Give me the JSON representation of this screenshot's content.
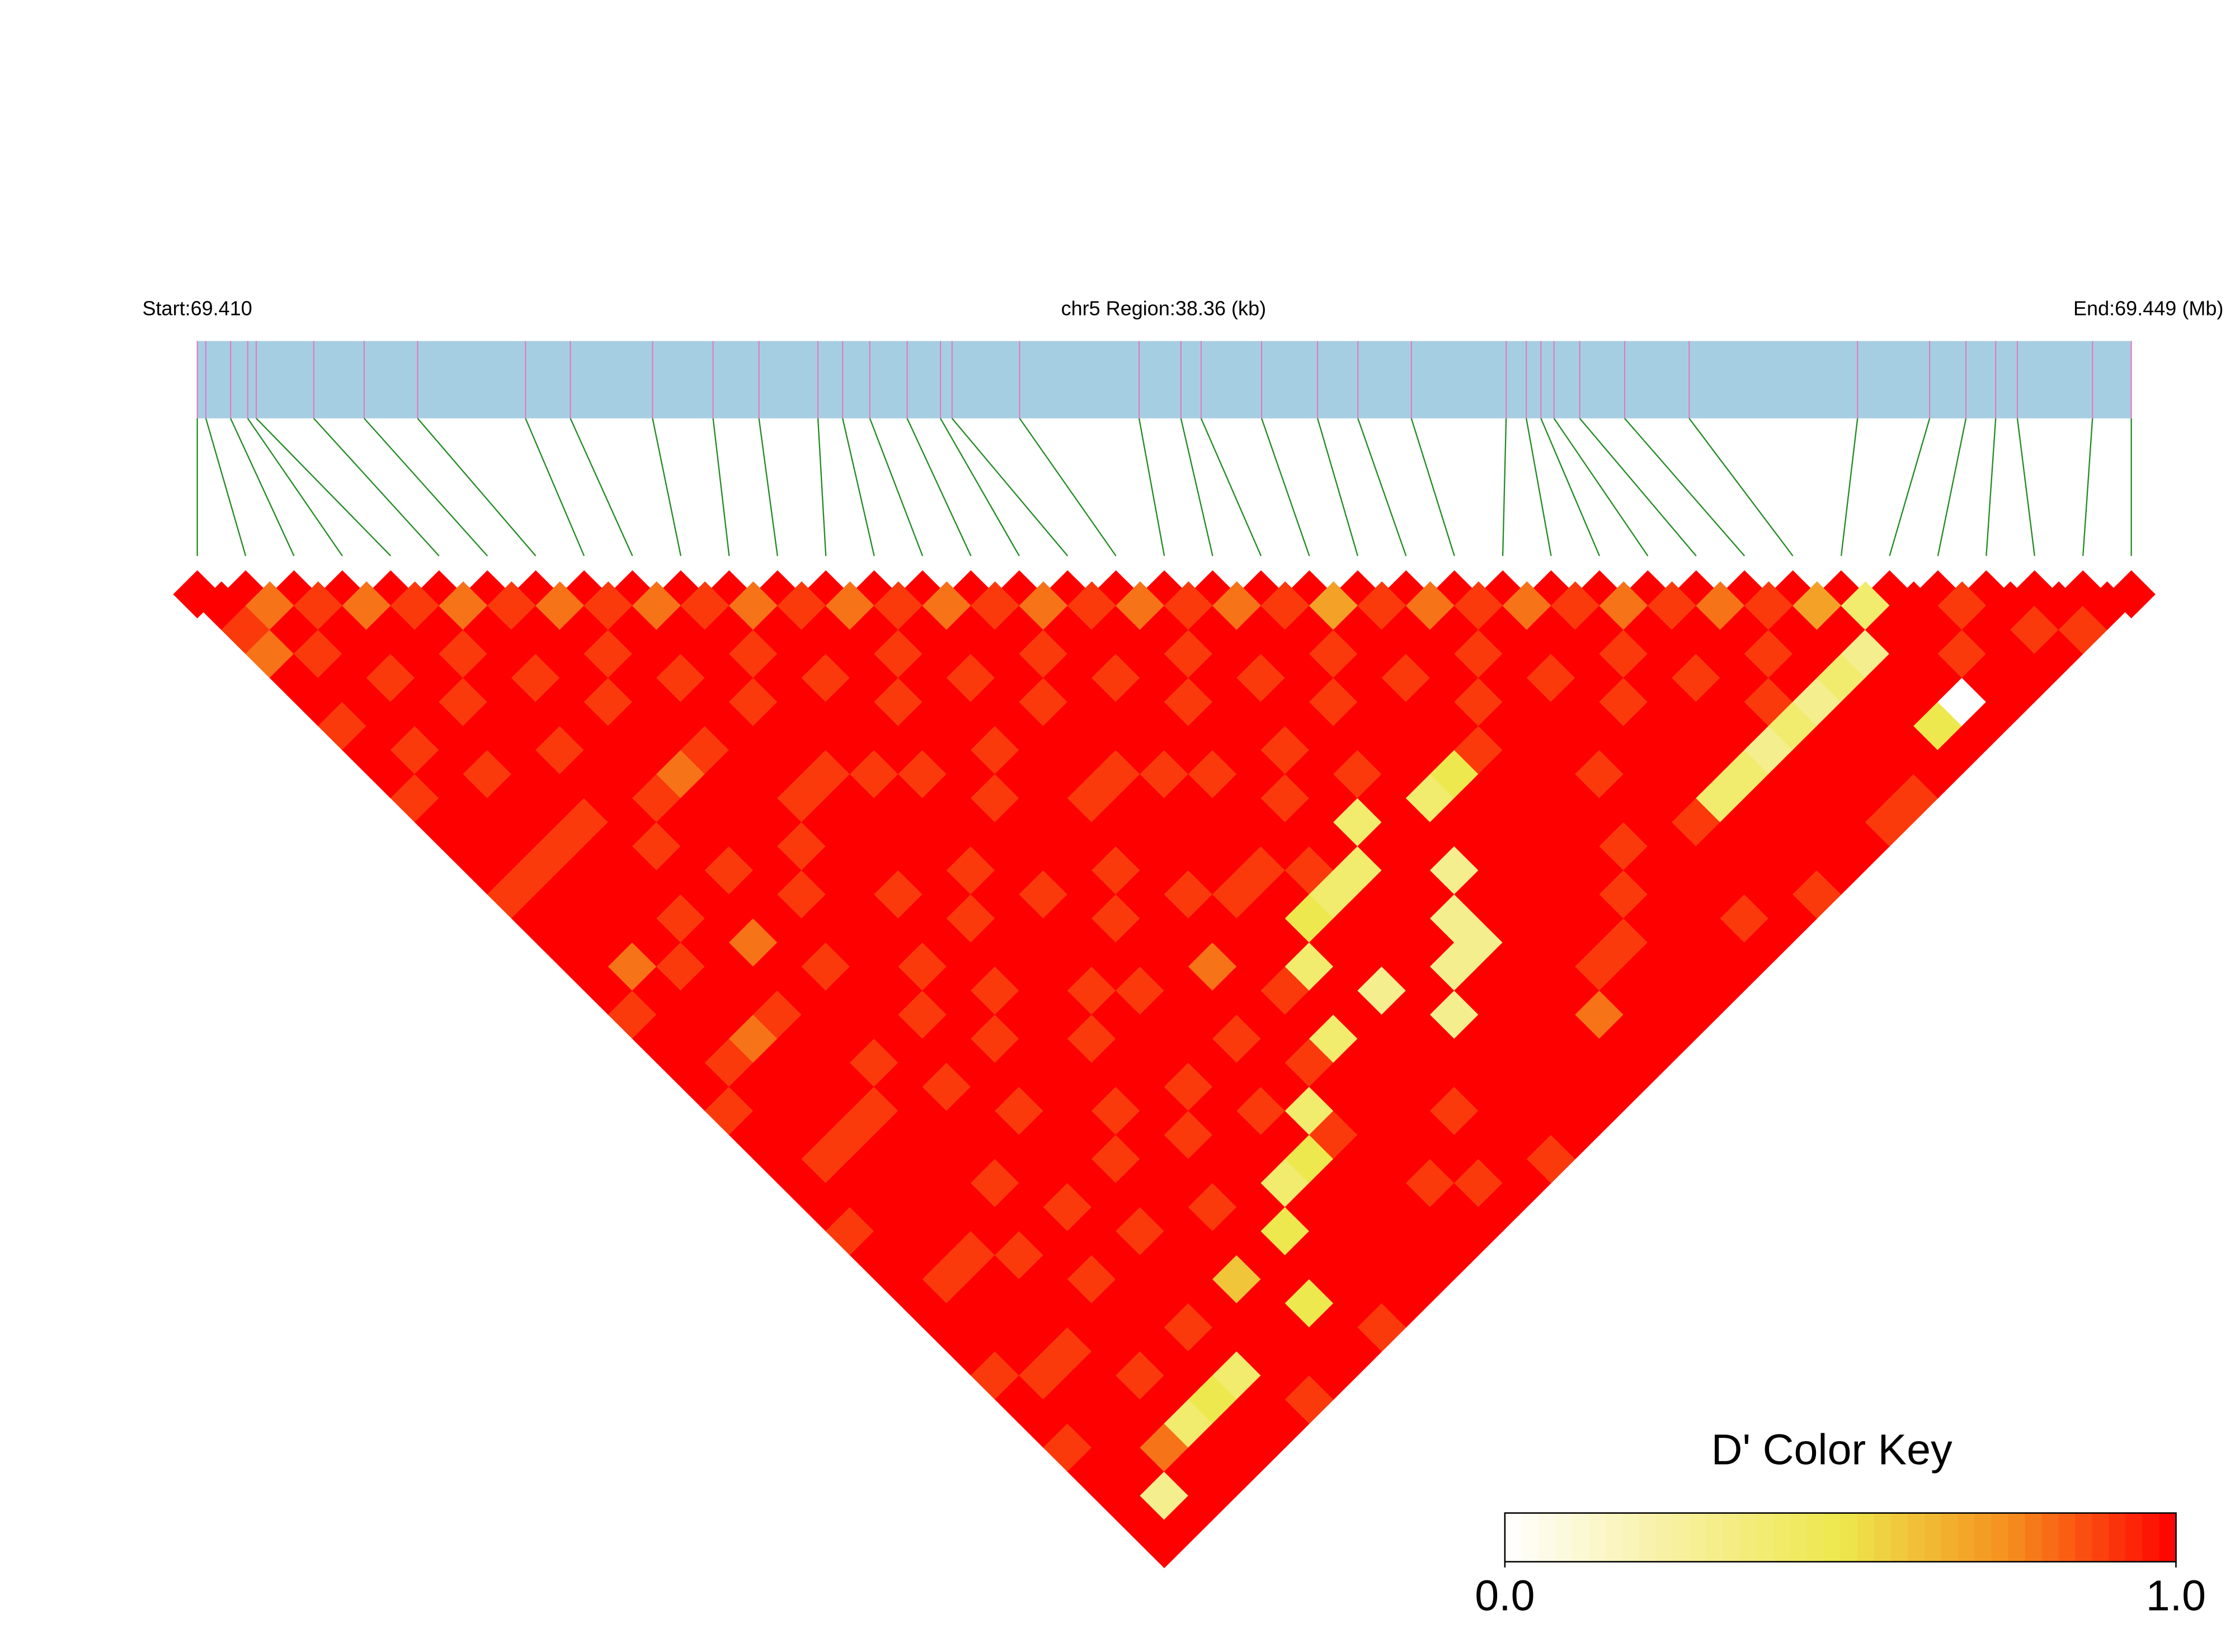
{
  "chart_data": {
    "type": "ld-heatmap",
    "title": "chr5 Region:38.36 (kb)",
    "start_label": "Start:69.410",
    "end_label": "End:69.449 (Mb)",
    "xlim": [
      0,
      38.36
    ],
    "snp_positions": [
      0,
      0.17,
      0.66,
      1.0,
      1.17,
      2.31,
      3.31,
      4.37,
      6.51,
      7.4,
      9.03,
      10.23,
      11.14,
      12.31,
      12.8,
      13.34,
      14.08,
      14.74,
      14.97,
      16.31,
      18.68,
      19.51,
      19.91,
      21.11,
      22.22,
      23.02,
      24.08,
      25.96,
      26.36,
      26.65,
      26.91,
      27.42,
      28.31,
      29.59,
      32.93,
      34.36,
      35.08,
      35.67,
      36.1,
      37.59,
      38.36
    ],
    "d_prime": [
      [
        1,
        0.9,
        0.8,
        1,
        1,
        0.9,
        1,
        1,
        0.9,
        1,
        1,
        1,
        0.9,
        1,
        1,
        1,
        1,
        0.9,
        1,
        1,
        1,
        0.9,
        1,
        1,
        1,
        1,
        0.9,
        1,
        1,
        1,
        1,
        1,
        0.9,
        1,
        1,
        0.9,
        1,
        1,
        1,
        1
      ],
      [
        0.8,
        1,
        0.9,
        1,
        1,
        1,
        0.9,
        1,
        1,
        1,
        1,
        0.9,
        1,
        1,
        1,
        0.8,
        1,
        1,
        1,
        0.9,
        1,
        1,
        1,
        0.9,
        1,
        1,
        1,
        1,
        0.9,
        1,
        1,
        1,
        0.9,
        1,
        1,
        1,
        1,
        0.3,
        1
      ],
      [
        0.9,
        1,
        1,
        0.9,
        1,
        1,
        1,
        0.9,
        1,
        1,
        0.9,
        1,
        1,
        1,
        1,
        0.9,
        1,
        1,
        0.8,
        1,
        1,
        1,
        0.9,
        1,
        1,
        1,
        1,
        0.9,
        1,
        1,
        1,
        0.9,
        1,
        1,
        1,
        0.8,
        1,
        1
      ],
      [
        0.8,
        1,
        1,
        1,
        0.9,
        1,
        1,
        1,
        1,
        0.9,
        1,
        1,
        1,
        0.9,
        1,
        1,
        1,
        0.9,
        1,
        1,
        1,
        0.9,
        1,
        1,
        1,
        1,
        1,
        0.9,
        1,
        1,
        1,
        1,
        0.9,
        1,
        0.4,
        1,
        1
      ],
      [
        0.9,
        1,
        0.9,
        1,
        1,
        1,
        0.9,
        1,
        1,
        1,
        0.9,
        1,
        1,
        1,
        0.8,
        1,
        1,
        1,
        1,
        0.9,
        1,
        1,
        1,
        1,
        0.9,
        1,
        1,
        1,
        0.9,
        1,
        1,
        1,
        1,
        0.5,
        1,
        1
      ],
      [
        0.8,
        1,
        1,
        0.9,
        1,
        1,
        1,
        1,
        0.9,
        1,
        1,
        0.9,
        1,
        1,
        1,
        0.9,
        1,
        1,
        1,
        1,
        0.9,
        1,
        1,
        1,
        1,
        0.9,
        1,
        1,
        1,
        1,
        0.9,
        1,
        0.4,
        1,
        1
      ],
      [
        0.9,
        1,
        1,
        1,
        0.9,
        1,
        1,
        0.8,
        1,
        1,
        1,
        1,
        0.9,
        1,
        1,
        1,
        1,
        0.9,
        1,
        1,
        1,
        0.9,
        1,
        1,
        1,
        1,
        0.9,
        1,
        1,
        1,
        1,
        1,
        1,
        0.9
      ],
      [
        0.8,
        1,
        0.9,
        1,
        1,
        1,
        0.9,
        1,
        1,
        1,
        0.9,
        1,
        1,
        1,
        1,
        0.9,
        1,
        1,
        0.9,
        1,
        1,
        1,
        1,
        0.9,
        1,
        1,
        1,
        1,
        0.6,
        1,
        1,
        1,
        1
      ],
      [
        0.9,
        1,
        1,
        0.9,
        1,
        1,
        1,
        1,
        0.9,
        1,
        1,
        1,
        0.9,
        1,
        1,
        1,
        0.9,
        1,
        1,
        1,
        1,
        0.9,
        1,
        1,
        1,
        0.9,
        1,
        1,
        1,
        0.5,
        1,
        1
      ],
      [
        0.8,
        1,
        1,
        1,
        0.9,
        1,
        1,
        0.9,
        1,
        1,
        1,
        1,
        1,
        0.9,
        1,
        1,
        1,
        1,
        0.9,
        1,
        1,
        1,
        0.9,
        1,
        1,
        1,
        0.5,
        1,
        1,
        1,
        0.9
      ],
      [
        0.9,
        1,
        0.9,
        1,
        1,
        1,
        1,
        0.9,
        1,
        1,
        1,
        0.9,
        1,
        1,
        1,
        1,
        0.9,
        1,
        1,
        1,
        0.9,
        1,
        1,
        1,
        0.4,
        1,
        1,
        1,
        1,
        1
      ],
      [
        0.8,
        1,
        1,
        0.9,
        1,
        1,
        1,
        0.9,
        1,
        1,
        1,
        1,
        0.9,
        1,
        1,
        1,
        0.9,
        1,
        1,
        1,
        1,
        0.9,
        1,
        0.5,
        1,
        1,
        1,
        1,
        1
      ],
      [
        0.9,
        1,
        1,
        1,
        0.9,
        1,
        1,
        1,
        0.9,
        1,
        1,
        1,
        1,
        0.9,
        1,
        1,
        1,
        1,
        0.9,
        1,
        1,
        0.4,
        0.9,
        1,
        1,
        1,
        1,
        1
      ],
      [
        0.8,
        1,
        0.9,
        1,
        1,
        1,
        0.9,
        1,
        1,
        1,
        1,
        0.9,
        1,
        1,
        1,
        0.8,
        1,
        1,
        1,
        0.9,
        1,
        1,
        1,
        1,
        0.9,
        1,
        1
      ],
      [
        0.9,
        1,
        1,
        0.9,
        1,
        1,
        1,
        1,
        0.9,
        1,
        1,
        1,
        0.9,
        1,
        1,
        1,
        0.9,
        1,
        0.4,
        1,
        1,
        1,
        1,
        1,
        0.9,
        1
      ],
      [
        0.8,
        1,
        1,
        1,
        0.9,
        1,
        1,
        0.9,
        1,
        1,
        1,
        1,
        0.9,
        1,
        1,
        0.4,
        1,
        1,
        1,
        1,
        1,
        0.9,
        1,
        1,
        1
      ],
      [
        0.9,
        1,
        0.9,
        1,
        1,
        1,
        1,
        0.9,
        1,
        1,
        1,
        0.9,
        1,
        0.5,
        1,
        1,
        0.3,
        1,
        1,
        1,
        1,
        1,
        1,
        0.9
      ],
      [
        0.8,
        1,
        1,
        0.9,
        1,
        1,
        1,
        0.9,
        1,
        1,
        1,
        0.9,
        0.4,
        1,
        1,
        1,
        1,
        0.3,
        1,
        1,
        1,
        1,
        1
      ],
      [
        0.9,
        1,
        1,
        1,
        0.9,
        1,
        1,
        1,
        0.9,
        1,
        1,
        0.4,
        1,
        1,
        1,
        0.3,
        1,
        1,
        1,
        1,
        1,
        1
      ],
      [
        0.8,
        1,
        0.9,
        1,
        1,
        1,
        0.9,
        1,
        1,
        0.4,
        1,
        1,
        1,
        0.3,
        0.3,
        1,
        1,
        1,
        1,
        1,
        1
      ],
      [
        0.9,
        1,
        1,
        0.9,
        1,
        1,
        1,
        0.9,
        1,
        1,
        1,
        0.3,
        1,
        1,
        1,
        1,
        1,
        0.8,
        1,
        1
      ],
      [
        0.8,
        1,
        1,
        1,
        0.9,
        1,
        1,
        1,
        0.4,
        1,
        1,
        1,
        1,
        1,
        1,
        0.9,
        1,
        1,
        1
      ],
      [
        0.9,
        1,
        0.9,
        1,
        1,
        1,
        1,
        0.5,
        1,
        1,
        1,
        1,
        1,
        1,
        0.9,
        1,
        1,
        1
      ],
      [
        0.7,
        1,
        1,
        0.9,
        1,
        1,
        0.9,
        1,
        1,
        1,
        1,
        1,
        0.9,
        1,
        1,
        1,
        1
      ],
      [
        0.9,
        1,
        1,
        1,
        0.9,
        1,
        1,
        1,
        1,
        1,
        0.9,
        1,
        1,
        1,
        1,
        1
      ],
      [
        0.8,
        1,
        0.9,
        1,
        1,
        1,
        1,
        0.9,
        1,
        1,
        1,
        1,
        1,
        0.9,
        1
      ],
      [
        0.9,
        1,
        1,
        0.9,
        1,
        1,
        1,
        1,
        1,
        0.9,
        1,
        1,
        1,
        1
      ],
      [
        0.8,
        1,
        1,
        1,
        0.9,
        1,
        1,
        1,
        0.4,
        1,
        1,
        1,
        0.9
      ],
      [
        0.9,
        1,
        0.9,
        1,
        1,
        1,
        1,
        0.4,
        1,
        1,
        1,
        1
      ],
      [
        0.8,
        1,
        1,
        0.9,
        1,
        1,
        0.3,
        1,
        1,
        1,
        1
      ],
      [
        0.9,
        1,
        1,
        1,
        0.9,
        0.4,
        1,
        1,
        1,
        0.9
      ],
      [
        0.8,
        1,
        0.9,
        1,
        0.3,
        1,
        1,
        1,
        0.9
      ],
      [
        0.9,
        1,
        1,
        0.4,
        1,
        1,
        1,
        1
      ],
      [
        0.7,
        1,
        0.3,
        1,
        1,
        0.5,
        1
      ],
      [
        0.4,
        1,
        1,
        1,
        0,
        1
      ],
      [
        1,
        1,
        0.9,
        1,
        1
      ],
      [
        0.9,
        1,
        1,
        1
      ],
      [
        1,
        0.9,
        1
      ],
      [
        1,
        0.9
      ],
      [
        1
      ]
    ],
    "colors": [
      "#ffffff",
      "#f7f0a0",
      "#ede84d",
      "#f5901e",
      "#ff0000"
    ],
    "colorbar": {
      "title": "D' Color Key",
      "ticks": [
        {
          "value": 0,
          "label": "0.0"
        },
        {
          "value": 1,
          "label": "1.0"
        }
      ]
    }
  }
}
